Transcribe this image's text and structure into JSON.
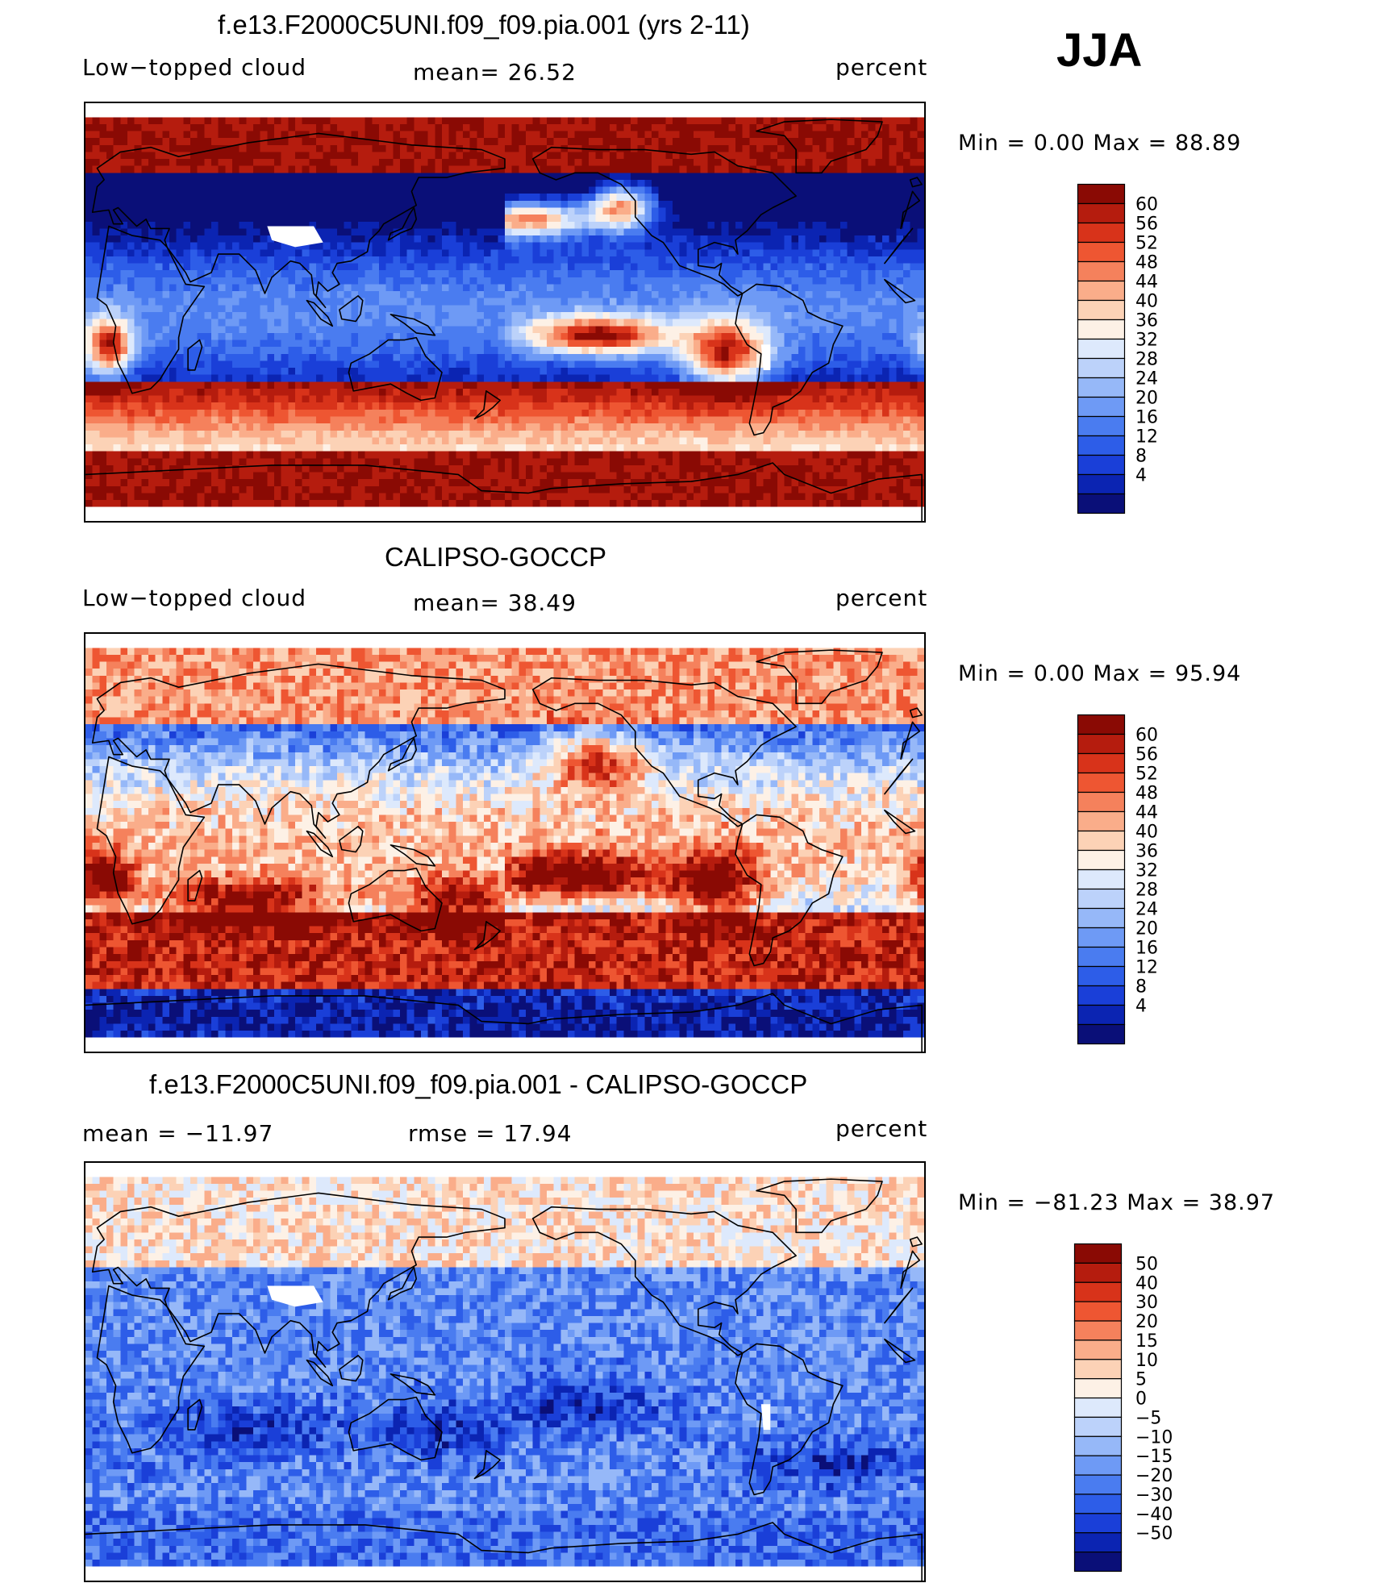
{
  "season": "JJA",
  "colors": {
    "seq": [
      "#0a0f78",
      "#0b24b2",
      "#1a3fd8",
      "#2d5de8",
      "#4a7cf0",
      "#6e9af5",
      "#96b8f8",
      "#bcd2fa",
      "#dde9fc",
      "#fdf1e6",
      "#fcd2b6",
      "#faad8a",
      "#f5815c",
      "#ee5632",
      "#d8331a",
      "#b51c0e",
      "#8a0a04"
    ],
    "diff": [
      "#0a0f78",
      "#0b24b2",
      "#1a3fd8",
      "#2d5de8",
      "#4a7cf0",
      "#6e9af5",
      "#96b8f8",
      "#bcd2fa",
      "#dde9fc",
      "#fdf1e6",
      "#fcd2b6",
      "#faad8a",
      "#f5815c",
      "#ee5632",
      "#d8331a",
      "#b51c0e",
      "#8a0a04"
    ]
  },
  "panels": [
    {
      "title": "f.e13.F2000C5UNI.f09_f09.pia.001 (yrs 2-11)",
      "left_label": "Low−topped cloud",
      "center_label": "mean=   26.52",
      "right_label": "percent",
      "minmax": "Min  =     0.00  Max  =     88.89",
      "map_kind": "model",
      "colorbar_kind": "seq",
      "levels": [
        "60",
        "56",
        "52",
        "48",
        "44",
        "40",
        "36",
        "32",
        "28",
        "24",
        "20",
        "16",
        "12",
        "8",
        "4"
      ]
    },
    {
      "title": "CALIPSO-GOCCP",
      "left_label": "Low−topped cloud",
      "center_label": "mean=   38.49",
      "right_label": "percent",
      "minmax": "Min  =     0.00  Max  =     95.94",
      "map_kind": "obs",
      "colorbar_kind": "seq",
      "levels": [
        "60",
        "56",
        "52",
        "48",
        "44",
        "40",
        "36",
        "32",
        "28",
        "24",
        "20",
        "16",
        "12",
        "8",
        "4"
      ]
    },
    {
      "title": "f.e13.F2000C5UNI.f09_f09.pia.001 - CALIPSO-GOCCP",
      "left_label": "mean  =  −11.97",
      "center_label": "rmse  =    17.94",
      "right_label": "percent",
      "minmax": "Min  =  −81.23  Max  =    38.97",
      "map_kind": "diff",
      "colorbar_kind": "diff",
      "levels": [
        "50",
        "40",
        "30",
        "20",
        "15",
        "10",
        "5",
        "0",
        "−5",
        "−10",
        "−15",
        "−20",
        "−30",
        "−40",
        "−50"
      ]
    }
  ]
}
